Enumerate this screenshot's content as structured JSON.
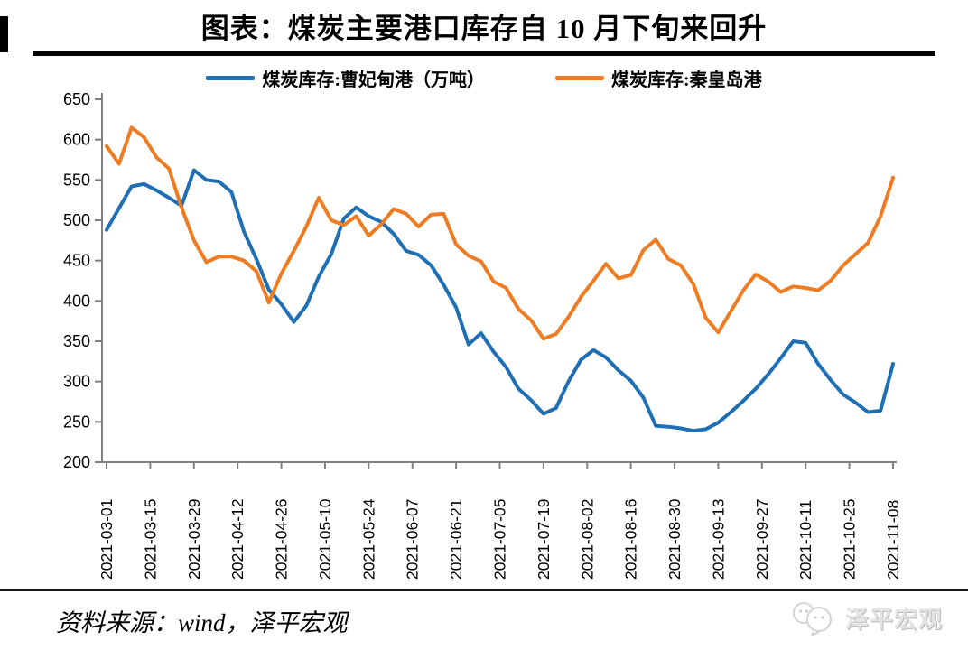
{
  "title": "图表：煤炭主要港口库存自 10 月下旬来回升",
  "legend": {
    "items": [
      {
        "label": "煤炭库存:曹妃甸港（万吨）",
        "color": "#1F6FB5"
      },
      {
        "label": "煤炭库存:秦皇岛港",
        "color": "#ED7C23"
      }
    ]
  },
  "footer": {
    "source": "资料来源：wind，泽平宏观",
    "watermark": "泽平宏观"
  },
  "colors": {
    "series_blue": "#1F6FB5",
    "series_orange": "#ED7C23",
    "axis": "#808080",
    "rule": "#000000"
  },
  "chart_data": {
    "type": "line",
    "title": "图表：煤炭主要港口库存自 10 月下旬来回升",
    "unit": "万吨",
    "grid": false,
    "legend_position": "top",
    "ylim": [
      200,
      650
    ],
    "yticks": [
      200,
      250,
      300,
      350,
      400,
      450,
      500,
      550,
      600,
      650
    ],
    "xtick_labels": [
      "2021-03-01",
      "2021-03-15",
      "2021-03-29",
      "2021-04-12",
      "2021-04-26",
      "2021-05-10",
      "2021-05-24",
      "2021-06-07",
      "2021-06-21",
      "2021-07-05",
      "2021-07-19",
      "2021-08-02",
      "2021-08-16",
      "2021-08-30",
      "2021-09-13",
      "2021-09-27",
      "2021-10-11",
      "2021-10-25",
      "2021-11-08"
    ],
    "x_dates": [
      "2021-03-01",
      "2021-03-05",
      "2021-03-09",
      "2021-03-13",
      "2021-03-17",
      "2021-03-21",
      "2021-03-25",
      "2021-03-29",
      "2021-04-02",
      "2021-04-06",
      "2021-04-10",
      "2021-04-14",
      "2021-04-18",
      "2021-04-22",
      "2021-04-26",
      "2021-04-30",
      "2021-05-04",
      "2021-05-08",
      "2021-05-12",
      "2021-05-16",
      "2021-05-20",
      "2021-05-24",
      "2021-05-28",
      "2021-06-01",
      "2021-06-05",
      "2021-06-09",
      "2021-06-13",
      "2021-06-17",
      "2021-06-21",
      "2021-06-25",
      "2021-06-29",
      "2021-07-03",
      "2021-07-07",
      "2021-07-11",
      "2021-07-15",
      "2021-07-19",
      "2021-07-23",
      "2021-07-27",
      "2021-07-31",
      "2021-08-04",
      "2021-08-08",
      "2021-08-12",
      "2021-08-16",
      "2021-08-20",
      "2021-08-24",
      "2021-08-28",
      "2021-09-01",
      "2021-09-05",
      "2021-09-09",
      "2021-09-13",
      "2021-09-17",
      "2021-09-21",
      "2021-09-25",
      "2021-09-29",
      "2021-10-03",
      "2021-10-07",
      "2021-10-11",
      "2021-10-15",
      "2021-10-19",
      "2021-10-23",
      "2021-10-27",
      "2021-10-31",
      "2021-11-04",
      "2021-11-08"
    ],
    "series": [
      {
        "name": "煤炭库存:曹妃甸港（万吨）",
        "color": "#1F6FB5",
        "values": [
          488,
          515,
          542,
          545,
          537,
          528,
          518,
          562,
          550,
          548,
          535,
          486,
          452,
          414,
          396,
          374,
          394,
          430,
          458,
          502,
          516,
          505,
          498,
          483,
          462,
          457,
          444,
          420,
          392,
          346,
          360,
          337,
          318,
          291,
          277,
          260,
          267,
          300,
          327,
          339,
          330,
          314,
          301,
          280,
          245,
          244,
          242,
          239,
          241,
          249,
          262,
          276,
          291,
          309,
          329,
          350,
          348,
          322,
          302,
          284,
          274,
          262,
          264,
          322
        ]
      },
      {
        "name": "煤炭库存:秦皇岛港",
        "color": "#ED7C23",
        "values": [
          592,
          570,
          615,
          603,
          578,
          564,
          516,
          475,
          448,
          455,
          455,
          450,
          437,
          398,
          434,
          462,
          492,
          528,
          500,
          494,
          505,
          481,
          495,
          514,
          508,
          492,
          507,
          508,
          470,
          456,
          449,
          424,
          416,
          390,
          376,
          353,
          359,
          380,
          405,
          425,
          446,
          428,
          432,
          463,
          476,
          452,
          444,
          421,
          379,
          361,
          387,
          413,
          433,
          424,
          411,
          418,
          416,
          413,
          425,
          444,
          458,
          472,
          505,
          553
        ]
      }
    ]
  }
}
